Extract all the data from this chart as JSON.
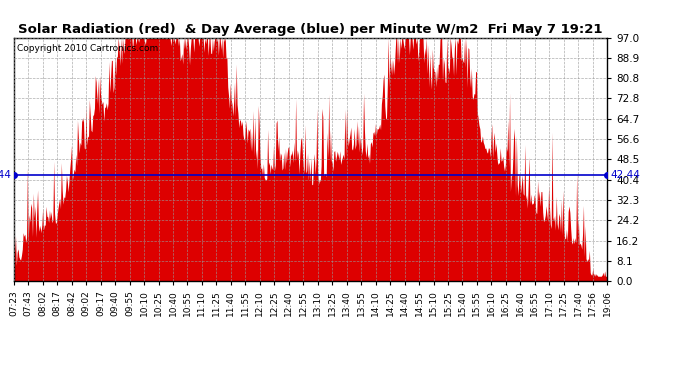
{
  "title": "Solar Radiation (red)  & Day Average (blue) per Minute W/m2  Fri May 7 19:21",
  "average_value": 42.44,
  "yticks": [
    0.0,
    8.1,
    16.2,
    24.2,
    32.3,
    40.4,
    48.5,
    56.6,
    64.7,
    72.8,
    80.8,
    88.9,
    97.0
  ],
  "ylim": [
    0.0,
    97.0
  ],
  "bar_color": "#dd0000",
  "line_color": "#0000cc",
  "background_color": "#ffffff",
  "grid_color": "#999999",
  "copyright_text": "Copyright 2010 Cartronics.com",
  "xtick_labels": [
    "07:23",
    "07:43",
    "08:02",
    "08:17",
    "08:42",
    "09:02",
    "09:17",
    "09:40",
    "09:55",
    "10:10",
    "10:25",
    "10:40",
    "10:55",
    "11:10",
    "11:25",
    "11:40",
    "11:55",
    "12:10",
    "12:25",
    "12:40",
    "12:55",
    "13:10",
    "13:25",
    "13:40",
    "13:55",
    "14:10",
    "14:25",
    "14:40",
    "14:55",
    "15:10",
    "15:25",
    "15:40",
    "15:55",
    "16:10",
    "16:25",
    "16:40",
    "16:55",
    "17:10",
    "17:25",
    "17:40",
    "17:56",
    "19:06"
  ]
}
